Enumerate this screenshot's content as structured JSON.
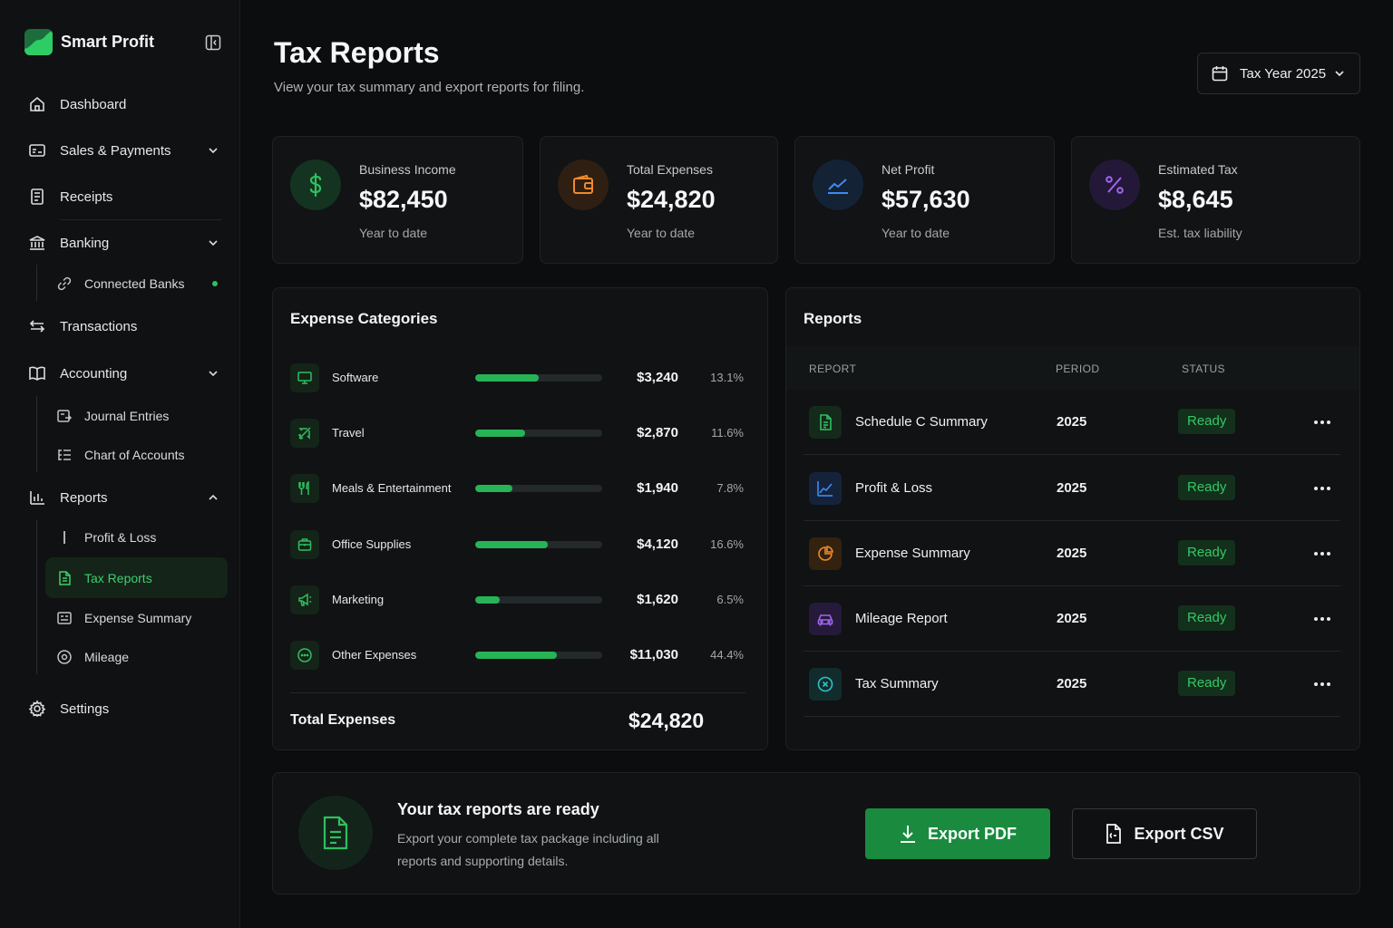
{
  "brand": {
    "name": "Smart Profit"
  },
  "sidebar": {
    "dashboard": "Dashboard",
    "sales": "Sales & Payments",
    "receipts": "Receipts",
    "banking": "Banking",
    "connected_banks": "Connected Banks",
    "transactions": "Transactions",
    "accounting": "Accounting",
    "journal_entries": "Journal Entries",
    "chart_of_accounts": "Chart of Accounts",
    "reports": "Reports",
    "profit_loss": "Profit & Loss",
    "tax_reports": "Tax Reports",
    "expense_summary": "Expense Summary",
    "mileage": "Mileage",
    "settings": "Settings"
  },
  "header": {
    "title": "Tax Reports",
    "subtitle": "View your tax summary and export reports for filing.",
    "year_select": "Tax Year 2025"
  },
  "cards": [
    {
      "label": "Business Income",
      "value": "$82,450",
      "note": "Year to date",
      "icon": "dollar-icon",
      "color": "#2fbf5f"
    },
    {
      "label": "Total Expenses",
      "value": "$24,820",
      "note": "Year to date",
      "icon": "wallet-icon",
      "color": "#f08a2c"
    },
    {
      "label": "Net Profit",
      "value": "$57,630",
      "note": "Year to date",
      "icon": "trend-line-icon",
      "color": "#3d8bf0"
    },
    {
      "label": "Estimated Tax",
      "value": "$8,645",
      "note": "Est. tax liability",
      "icon": "percent-icon",
      "color": "#a066f0"
    }
  ],
  "expenses": {
    "title": "Expense Categories",
    "rows": [
      {
        "name": "Software",
        "amount": "$3,240",
        "pct": "13.1%",
        "fill": 0.5,
        "icon": "monitor-icon"
      },
      {
        "name": "Travel",
        "amount": "$2,870",
        "pct": "11.6%",
        "fill": 0.39,
        "icon": "plane-icon"
      },
      {
        "name": "Meals & Entertainment",
        "amount": "$1,940",
        "pct": "7.8%",
        "fill": 0.29,
        "icon": "utensils-icon"
      },
      {
        "name": "Office Supplies",
        "amount": "$4,120",
        "pct": "16.6%",
        "fill": 0.57,
        "icon": "briefcase-icon"
      },
      {
        "name": "Marketing",
        "amount": "$1,620",
        "pct": "6.5%",
        "fill": 0.19,
        "icon": "megaphone-icon"
      },
      {
        "name": "Other Expenses",
        "amount": "$11,030",
        "pct": "44.4%",
        "fill": 0.64,
        "icon": "more-circle-icon"
      }
    ],
    "total_label": "Total Expenses",
    "total_value": "$24,820"
  },
  "reports": {
    "title": "Reports",
    "col_report": "REPORT",
    "col_period": "PERIOD",
    "col_status": "STATUS",
    "rows": [
      {
        "name": "Schedule C Summary",
        "period": "2025",
        "status": "Ready",
        "icon": "document-icon",
        "color": "#2fbf5f"
      },
      {
        "name": "Profit & Loss",
        "period": "2025",
        "status": "Ready",
        "icon": "line-chart-icon",
        "color": "#3d8bf0"
      },
      {
        "name": "Expense Summary",
        "period": "2025",
        "status": "Ready",
        "icon": "pie-chart-icon",
        "color": "#f08a2c"
      },
      {
        "name": "Mileage Report",
        "period": "2025",
        "status": "Ready",
        "icon": "car-icon",
        "color": "#a066f0"
      },
      {
        "name": "Tax Summary",
        "period": "2025",
        "status": "Ready",
        "icon": "tax-circle-icon",
        "color": "#2ec4c4"
      }
    ]
  },
  "export": {
    "title": "Your tax reports are ready",
    "description": "Export your complete tax package including all reports and supporting details.",
    "pdf_label": "Export PDF",
    "csv_label": "Export CSV"
  }
}
